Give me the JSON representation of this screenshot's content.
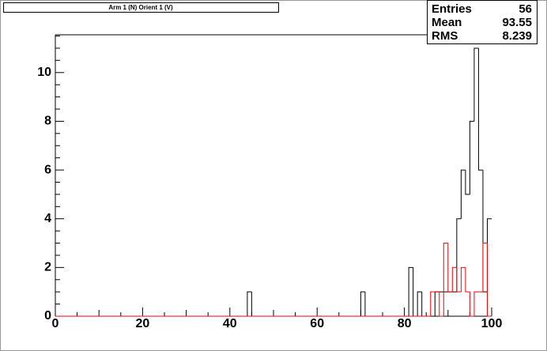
{
  "chart_data": {
    "type": "histogram",
    "title": "Arm 1 (N) Orient 1 (V)",
    "bins": [
      0,
      1,
      2,
      3,
      4,
      5,
      6,
      7,
      8,
      9,
      10,
      11,
      12,
      13,
      14,
      15,
      16,
      17,
      18,
      19,
      20,
      21,
      22,
      23,
      24,
      25,
      26,
      27,
      28,
      29,
      30,
      31,
      32,
      33,
      34,
      35,
      36,
      37,
      38,
      39,
      40,
      41,
      42,
      43,
      44,
      45,
      46,
      47,
      48,
      49,
      50,
      51,
      52,
      53,
      54,
      55,
      56,
      57,
      58,
      59,
      60,
      61,
      62,
      63,
      64,
      65,
      66,
      67,
      68,
      69,
      70,
      71,
      72,
      73,
      74,
      75,
      76,
      77,
      78,
      79,
      80,
      81,
      82,
      83,
      84,
      85,
      86,
      87,
      88,
      89,
      90,
      91,
      92,
      93,
      94,
      95,
      96,
      97,
      98,
      99,
      100
    ],
    "series": [
      {
        "color": "#000000",
        "values": [
          0,
          0,
          0,
          0,
          0,
          0,
          0,
          0,
          0,
          0,
          0,
          0,
          0,
          0,
          0,
          0,
          0,
          0,
          0,
          0,
          0,
          0,
          0,
          0,
          0,
          0,
          0,
          0,
          0,
          0,
          0,
          0,
          0,
          0,
          0,
          0,
          0,
          0,
          0,
          0,
          0,
          0,
          0,
          0,
          1,
          0,
          0,
          0,
          0,
          0,
          0,
          0,
          0,
          0,
          0,
          0,
          0,
          0,
          0,
          0,
          0,
          0,
          0,
          0,
          0,
          0,
          0,
          0,
          0,
          0,
          1,
          0,
          0,
          0,
          0,
          0,
          0,
          0,
          0,
          0,
          0,
          2,
          0,
          1,
          0,
          0,
          0,
          1,
          1,
          1,
          1,
          1,
          4,
          6,
          5,
          8,
          11,
          6,
          1,
          4
        ]
      },
      {
        "color": "#ff0000",
        "values": [
          0,
          0,
          0,
          0,
          0,
          0,
          0,
          0,
          0,
          0,
          0,
          0,
          0,
          0,
          0,
          0,
          0,
          0,
          0,
          0,
          0,
          0,
          0,
          0,
          0,
          0,
          0,
          0,
          0,
          0,
          0,
          0,
          0,
          0,
          0,
          0,
          0,
          0,
          0,
          0,
          0,
          0,
          0,
          0,
          0,
          0,
          0,
          0,
          0,
          0,
          0,
          0,
          0,
          0,
          0,
          0,
          0,
          0,
          0,
          0,
          0,
          0,
          0,
          0,
          0,
          0,
          0,
          0,
          0,
          0,
          0,
          0,
          0,
          0,
          0,
          0,
          0,
          0,
          0,
          0,
          0,
          0,
          0,
          0,
          0,
          0,
          1,
          1,
          0,
          3,
          1,
          2,
          1,
          2,
          1,
          0,
          1,
          1,
          3,
          0
        ]
      }
    ],
    "xlim": [
      0,
      100
    ],
    "xticks": [
      0,
      20,
      40,
      60,
      80,
      100
    ],
    "ylim": [
      0,
      11.55
    ],
    "yticks": [
      0,
      2,
      4,
      6,
      8,
      10
    ],
    "stats": [
      {
        "label": "Entries",
        "value": 56
      },
      {
        "label": "Mean",
        "value": 93.55
      },
      {
        "label": "RMS",
        "value": 8.239
      }
    ]
  }
}
